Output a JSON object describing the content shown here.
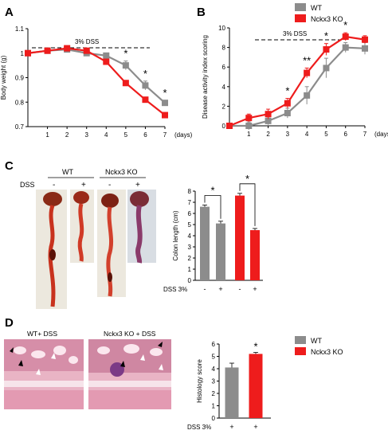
{
  "colors": {
    "wt": "#8c8c8c",
    "ko": "#ee1c1c",
    "tissue_bg": "#e8e4da",
    "histo_bg": "#e9b4c5"
  },
  "panel_labels": {
    "a": "A",
    "b": "B",
    "c": "C",
    "d": "D"
  },
  "legend": {
    "wt": "WT",
    "ko": "Nckx3 KO"
  },
  "chart_data": [
    {
      "id": "A",
      "type": "line",
      "title": "",
      "xlabel": "(days)",
      "ylabel": "Body weight (g)",
      "x": [
        0,
        1,
        2,
        3,
        4,
        5,
        6,
        7
      ],
      "ylim": [
        0.7,
        1.1
      ],
      "yticks": [
        "0.7",
        "0.8",
        "0.9",
        "1",
        "1.1"
      ],
      "xticks": [
        "1",
        "2",
        "3",
        "4",
        "5",
        "6",
        "7"
      ],
      "annotation": "3% DSS",
      "series": [
        {
          "name": "WT",
          "values": [
            1.0,
            1.01,
            1.015,
            1.0,
            0.99,
            0.95,
            0.868,
            0.797
          ],
          "err": [
            0.005,
            0.005,
            0.006,
            0.01,
            0.01,
            0.018,
            0.018,
            0.01
          ]
        },
        {
          "name": "Nckx3 KO",
          "values": [
            1.0,
            1.01,
            1.02,
            1.01,
            0.965,
            0.878,
            0.81,
            0.747
          ],
          "err": [
            0.005,
            0.005,
            0.005,
            0.006,
            0.008,
            0.006,
            0.008,
            0.005
          ]
        }
      ],
      "stars": [
        {
          "x": 5,
          "label": "*"
        },
        {
          "x": 6,
          "label": "*"
        },
        {
          "x": 7,
          "label": "*"
        }
      ]
    },
    {
      "id": "B",
      "type": "line",
      "title": "",
      "xlabel": "(days)",
      "ylabel": "Disease activity index scoring",
      "x": [
        0,
        1,
        2,
        3,
        4,
        5,
        6,
        7
      ],
      "ylim": [
        0,
        10
      ],
      "yticks": [
        "0",
        "2",
        "4",
        "6",
        "8",
        "10"
      ],
      "xticks": [
        "1",
        "2",
        "3",
        "4",
        "5",
        "6",
        "7"
      ],
      "annotation": "3% DSS",
      "series": [
        {
          "name": "WT",
          "values": [
            0,
            0,
            0.5,
            1.3,
            3.1,
            5.9,
            8.0,
            7.9
          ],
          "err": [
            0.2,
            0.4,
            0.4,
            0.5,
            0.9,
            1.0,
            0.5,
            0.6
          ]
        },
        {
          "name": "Nckx3 KO",
          "values": [
            0,
            0.8,
            1.2,
            2.3,
            5.4,
            7.8,
            9.1,
            8.8
          ],
          "err": [
            0.2,
            0.4,
            0.5,
            0.5,
            0.5,
            0.6,
            0.4,
            0.4
          ]
        }
      ],
      "stars": [
        {
          "x": 3,
          "label": "*"
        },
        {
          "x": 4,
          "label": "**"
        },
        {
          "x": 5,
          "label": "*"
        },
        {
          "x": 6,
          "label": "*"
        }
      ]
    },
    {
      "id": "C",
      "type": "bar",
      "title": "",
      "xlabel": "DSS 3%",
      "ylabel": "Colon length (cm)",
      "categories": [
        "-",
        "+",
        "-",
        "+"
      ],
      "values": [
        6.6,
        5.1,
        7.6,
        4.5
      ],
      "err": [
        0.15,
        0.2,
        0.2,
        0.15
      ],
      "groups": [
        "WT",
        "WT",
        "Nckx3 KO",
        "Nckx3 KO"
      ],
      "ylim": [
        0,
        8
      ],
      "yticks": [
        "0",
        "1",
        "2",
        "3",
        "4",
        "5",
        "6",
        "7",
        "8"
      ],
      "brackets": [
        {
          "from": 0,
          "to": 1,
          "label": "*"
        },
        {
          "from": 2,
          "to": 3,
          "label": "*"
        }
      ]
    },
    {
      "id": "D",
      "type": "bar",
      "title": "",
      "xlabel": "DSS 3%",
      "ylabel": "Histology score",
      "categories": [
        "+",
        "+"
      ],
      "values": [
        4.1,
        5.2
      ],
      "err": [
        0.35,
        0.12
      ],
      "groups": [
        "WT",
        "Nckx3 KO"
      ],
      "ylim": [
        0,
        6
      ],
      "yticks": [
        "0",
        "1",
        "2",
        "3",
        "4",
        "5",
        "6"
      ],
      "stars": [
        {
          "index": 1,
          "label": "*"
        }
      ]
    }
  ],
  "panel_c": {
    "wt_label": "WT",
    "ko_label": "Nckx3 KO",
    "dss_label": "DSS",
    "signs": [
      "-",
      "+",
      "-",
      "+"
    ]
  },
  "panel_d": {
    "wt_label": "WT+ DSS",
    "ko_label": "Nckx3 KO + DSS"
  }
}
